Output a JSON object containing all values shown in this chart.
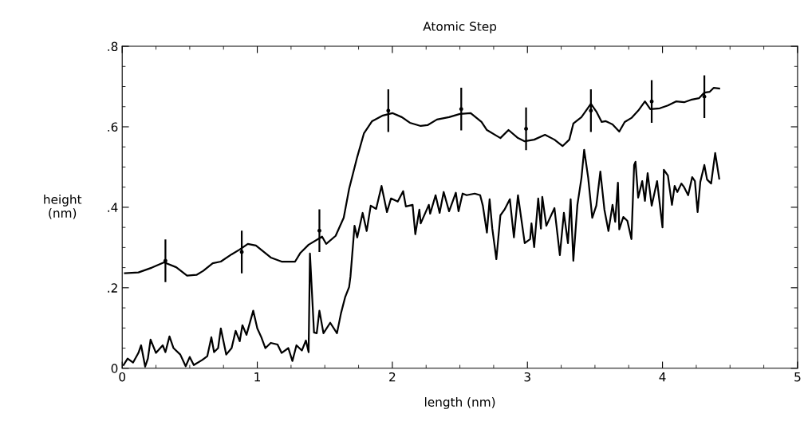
{
  "chart_data": {
    "type": "line",
    "title": "Atomic Step",
    "xlabel": "length (nm)",
    "ylabel": "height\n(nm)",
    "xlim": [
      0,
      5
    ],
    "xticks": [
      0,
      1,
      2,
      3,
      4,
      5
    ],
    "ylim": [
      0,
      0.8
    ],
    "yticks": [
      {
        "value": 0,
        "label": "0"
      },
      {
        "value": 0.2,
        "label": ".2"
      },
      {
        "value": 0.4,
        "label": ".4"
      },
      {
        "value": 0.6,
        "label": ".6"
      },
      {
        "value": 0.8,
        "label": ".8"
      }
    ],
    "grid": false,
    "legend": false,
    "line_style": "solid",
    "marker": "none",
    "series": [
      {
        "color": "#000000",
        "x": [
          0.02,
          0.12,
          0.22,
          0.31,
          0.4,
          0.48,
          0.55,
          0.6,
          0.67,
          0.73,
          0.81,
          0.87,
          0.93,
          0.99,
          1.1,
          1.18,
          1.28,
          1.32,
          1.38,
          1.48,
          1.51,
          1.58,
          1.64,
          1.68,
          1.74,
          1.79,
          1.85,
          1.93,
          2.0,
          2.07,
          2.13,
          2.21,
          2.26,
          2.33,
          2.42,
          2.5,
          2.58,
          2.66,
          2.7,
          2.77,
          2.8,
          2.86,
          2.93,
          2.98,
          3.05,
          3.13,
          3.2,
          3.26,
          3.31,
          3.34,
          3.4,
          3.47,
          3.51,
          3.55,
          3.58,
          3.63,
          3.68,
          3.72,
          3.77,
          3.82,
          3.87,
          3.91,
          3.98,
          4.04,
          4.1,
          4.16,
          4.21,
          4.27,
          4.31,
          4.35,
          4.38,
          4.42
        ],
        "values": [
          0.236,
          0.238,
          0.25,
          0.263,
          0.251,
          0.23,
          0.232,
          0.242,
          0.261,
          0.265,
          0.283,
          0.295,
          0.309,
          0.305,
          0.275,
          0.265,
          0.265,
          0.287,
          0.307,
          0.327,
          0.309,
          0.329,
          0.374,
          0.446,
          0.525,
          0.584,
          0.614,
          0.628,
          0.634,
          0.624,
          0.61,
          0.602,
          0.604,
          0.618,
          0.624,
          0.632,
          0.634,
          0.612,
          0.592,
          0.578,
          0.572,
          0.592,
          0.572,
          0.564,
          0.568,
          0.58,
          0.568,
          0.552,
          0.568,
          0.608,
          0.624,
          0.657,
          0.638,
          0.612,
          0.614,
          0.606,
          0.588,
          0.612,
          0.622,
          0.64,
          0.663,
          0.644,
          0.646,
          0.653,
          0.663,
          0.661,
          0.667,
          0.671,
          0.685,
          0.687,
          0.697,
          0.695
        ]
      },
      {
        "color": "#000000",
        "x": [
          0.01,
          0.04,
          0.08,
          0.12,
          0.14,
          0.17,
          0.19,
          0.21,
          0.25,
          0.3,
          0.32,
          0.35,
          0.38,
          0.43,
          0.47,
          0.5,
          0.53,
          0.59,
          0.63,
          0.66,
          0.68,
          0.71,
          0.73,
          0.77,
          0.81,
          0.84,
          0.87,
          0.89,
          0.92,
          0.97,
          1.0,
          1.03,
          1.06,
          1.1,
          1.15,
          1.18,
          1.23,
          1.26,
          1.29,
          1.33,
          1.36,
          1.38,
          1.39,
          1.42,
          1.44,
          1.46,
          1.49,
          1.54,
          1.59,
          1.62,
          1.65,
          1.68,
          1.69,
          1.72,
          1.74,
          1.78,
          1.81,
          1.84,
          1.88,
          1.92,
          1.96,
          1.99,
          2.04,
          2.08,
          2.1,
          2.15,
          2.17,
          2.2,
          2.21,
          2.27,
          2.28,
          2.32,
          2.35,
          2.38,
          2.42,
          2.47,
          2.49,
          2.52,
          2.55,
          2.61,
          2.65,
          2.67,
          2.7,
          2.72,
          2.74,
          2.77,
          2.8,
          2.83,
          2.87,
          2.9,
          2.93,
          2.98,
          3.02,
          3.03,
          3.05,
          3.08,
          3.1,
          3.11,
          3.14,
          3.2,
          3.24,
          3.27,
          3.3,
          3.32,
          3.34,
          3.37,
          3.4,
          3.42,
          3.45,
          3.48,
          3.51,
          3.54,
          3.57,
          3.6,
          3.63,
          3.65,
          3.67,
          3.68,
          3.71,
          3.74,
          3.77,
          3.79,
          3.8,
          3.82,
          3.85,
          3.87,
          3.89,
          3.92,
          3.96,
          4.0,
          4.01,
          4.04,
          4.07,
          4.09,
          4.11,
          4.14,
          4.16,
          4.19,
          4.22,
          4.24,
          4.26,
          4.28,
          4.31,
          4.33,
          4.36,
          4.39,
          4.42
        ],
        "values": [
          0.008,
          0.024,
          0.014,
          0.038,
          0.057,
          0.004,
          0.024,
          0.071,
          0.038,
          0.057,
          0.04,
          0.079,
          0.05,
          0.034,
          0.005,
          0.028,
          0.008,
          0.02,
          0.03,
          0.077,
          0.04,
          0.05,
          0.099,
          0.034,
          0.05,
          0.093,
          0.067,
          0.107,
          0.083,
          0.143,
          0.099,
          0.077,
          0.05,
          0.063,
          0.059,
          0.038,
          0.05,
          0.018,
          0.057,
          0.044,
          0.069,
          0.04,
          0.285,
          0.089,
          0.087,
          0.143,
          0.087,
          0.113,
          0.087,
          0.137,
          0.176,
          0.202,
          0.228,
          0.354,
          0.325,
          0.386,
          0.341,
          0.404,
          0.396,
          0.453,
          0.388,
          0.422,
          0.414,
          0.44,
          0.402,
          0.406,
          0.333,
          0.394,
          0.36,
          0.406,
          0.384,
          0.43,
          0.386,
          0.438,
          0.39,
          0.436,
          0.39,
          0.434,
          0.43,
          0.434,
          0.43,
          0.404,
          0.337,
          0.42,
          0.347,
          0.271,
          0.38,
          0.394,
          0.42,
          0.325,
          0.43,
          0.311,
          0.321,
          0.36,
          0.301,
          0.422,
          0.347,
          0.426,
          0.354,
          0.398,
          0.281,
          0.386,
          0.311,
          0.42,
          0.267,
          0.406,
          0.473,
          0.543,
          0.473,
          0.374,
          0.404,
          0.489,
          0.394,
          0.341,
          0.406,
          0.364,
          0.461,
          0.345,
          0.376,
          0.366,
          0.321,
          0.505,
          0.513,
          0.424,
          0.465,
          0.416,
          0.485,
          0.404,
          0.465,
          0.35,
          0.493,
          0.479,
          0.406,
          0.453,
          0.438,
          0.459,
          0.45,
          0.43,
          0.475,
          0.465,
          0.388,
          0.463,
          0.505,
          0.469,
          0.459,
          0.535,
          0.471
        ]
      },
      {
        "type": "scatter",
        "marker": "circle",
        "color": "#000000",
        "x": [
          0.32,
          0.885,
          1.46,
          1.97,
          2.51,
          2.99,
          3.47,
          3.92,
          4.31
        ],
        "values": [
          0.267,
          0.289,
          0.342,
          0.64,
          0.644,
          0.595,
          0.64,
          0.663,
          0.675
        ],
        "errors": [
          0.053,
          0.053,
          0.053,
          0.053,
          0.053,
          0.053,
          0.053,
          0.053,
          0.053
        ]
      }
    ]
  }
}
